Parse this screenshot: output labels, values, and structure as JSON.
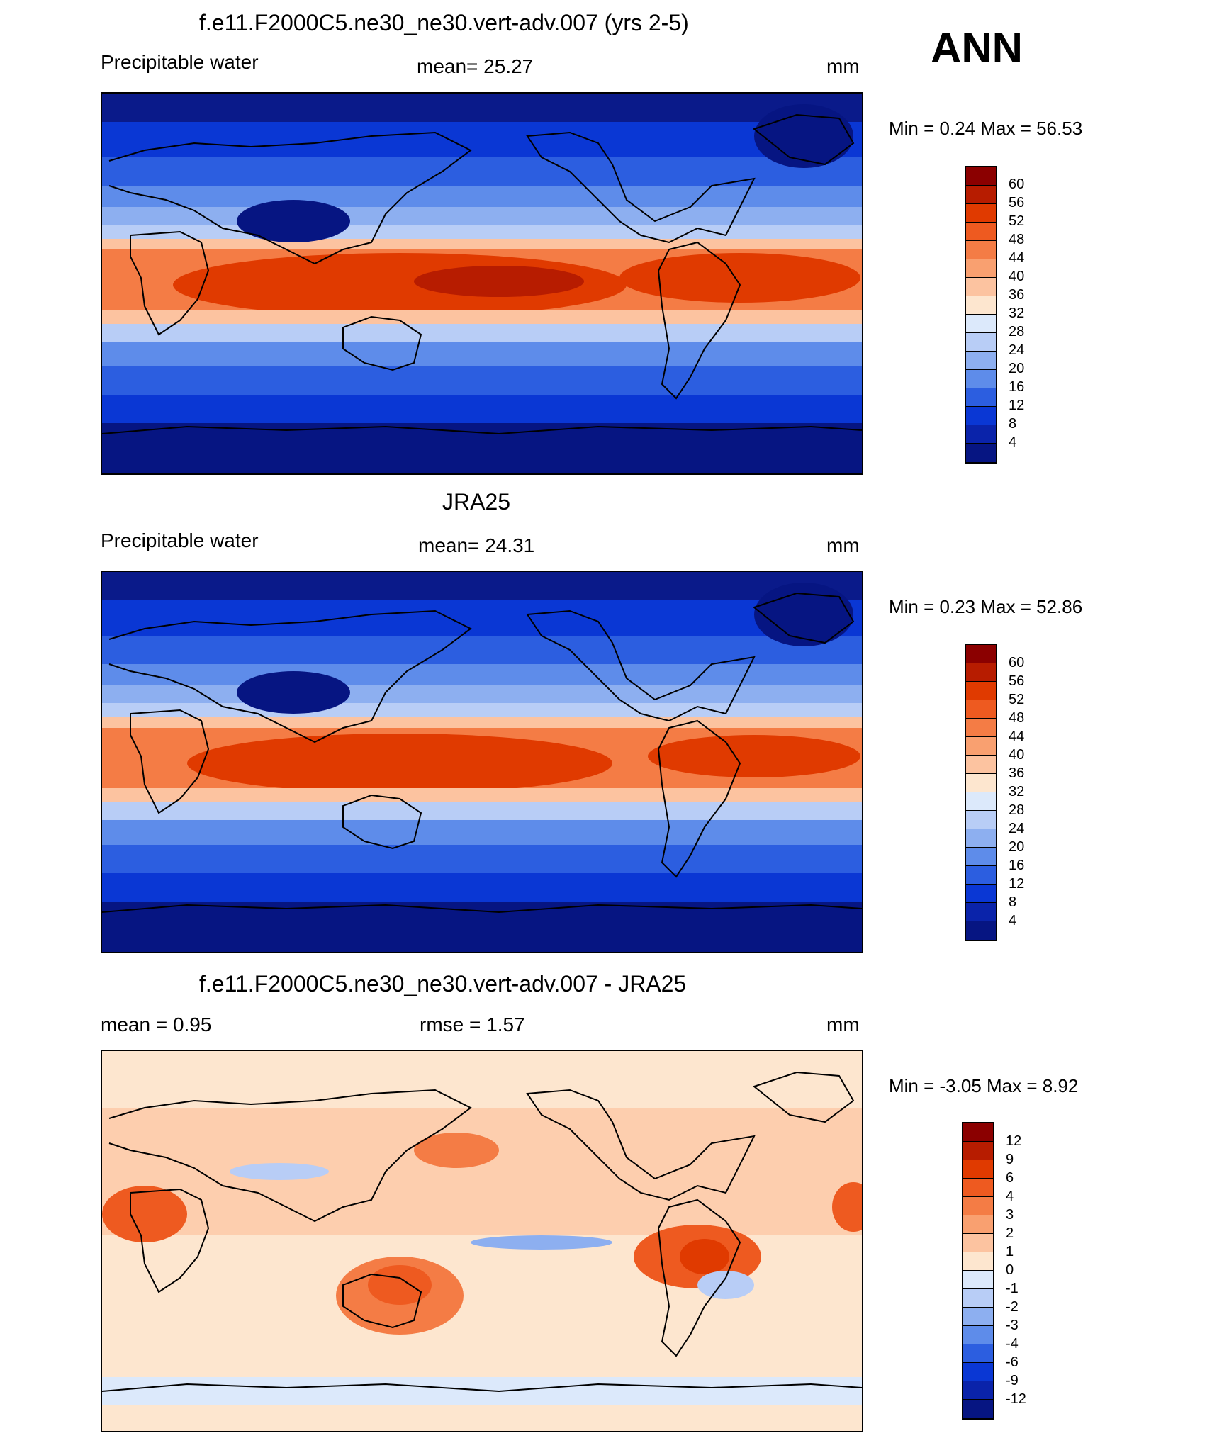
{
  "season": "ANN",
  "panels": [
    {
      "title": "f.e11.F2000C5.ne30_ne30.vert-adv.007 (yrs 2-5)",
      "left": "Precipitable water",
      "center": "mean=  25.27",
      "units": "mm",
      "minmax": "Min =   0.24 Max =  56.53",
      "colorbar": {
        "labels": [
          "60",
          "56",
          "52",
          "48",
          "44",
          "40",
          "36",
          "32",
          "28",
          "24",
          "20",
          "16",
          "12",
          "8",
          "4"
        ],
        "colors": [
          "#8b0000",
          "#b71c00",
          "#e03a00",
          "#ee5a20",
          "#f47c45",
          "#f9a070",
          "#fcc3a0",
          "#fde6cf",
          "#dce9fb",
          "#b8cdf6",
          "#8daff0",
          "#5e8cea",
          "#2c5ee0",
          "#0a37d4",
          "#0a23aa",
          "#061582"
        ]
      }
    },
    {
      "title": "JRA25",
      "left": "Precipitable water",
      "center": "mean=  24.31",
      "units": "mm",
      "minmax": "Min =   0.23 Max =  52.86",
      "colorbar": {
        "labels": [
          "60",
          "56",
          "52",
          "48",
          "44",
          "40",
          "36",
          "32",
          "28",
          "24",
          "20",
          "16",
          "12",
          "8",
          "4"
        ],
        "colors": [
          "#8b0000",
          "#b71c00",
          "#e03a00",
          "#ee5a20",
          "#f47c45",
          "#f9a070",
          "#fcc3a0",
          "#fde6cf",
          "#dce9fb",
          "#b8cdf6",
          "#8daff0",
          "#5e8cea",
          "#2c5ee0",
          "#0a37d4",
          "#0a23aa",
          "#061582"
        ]
      }
    },
    {
      "title": "f.e11.F2000C5.ne30_ne30.vert-adv.007 - JRA25",
      "left": "mean =   0.95",
      "center": "rmse =   1.57",
      "units": "mm",
      "minmax": "Min =  -3.05 Max =   8.92",
      "colorbar": {
        "labels": [
          "12",
          "9",
          "6",
          "4",
          "3",
          "2",
          "1",
          "0",
          "-1",
          "-2",
          "-3",
          "-4",
          "-6",
          "-9",
          "-12"
        ],
        "colors": [
          "#8b0000",
          "#b71c00",
          "#e03a00",
          "#ee5a20",
          "#f47c45",
          "#f9a070",
          "#fcc3a0",
          "#fde6cf",
          "#dce9fb",
          "#b8cdf6",
          "#8daff0",
          "#5e8cea",
          "#2c5ee0",
          "#0a37d4",
          "#0a23aa",
          "#061582"
        ]
      }
    }
  ]
}
